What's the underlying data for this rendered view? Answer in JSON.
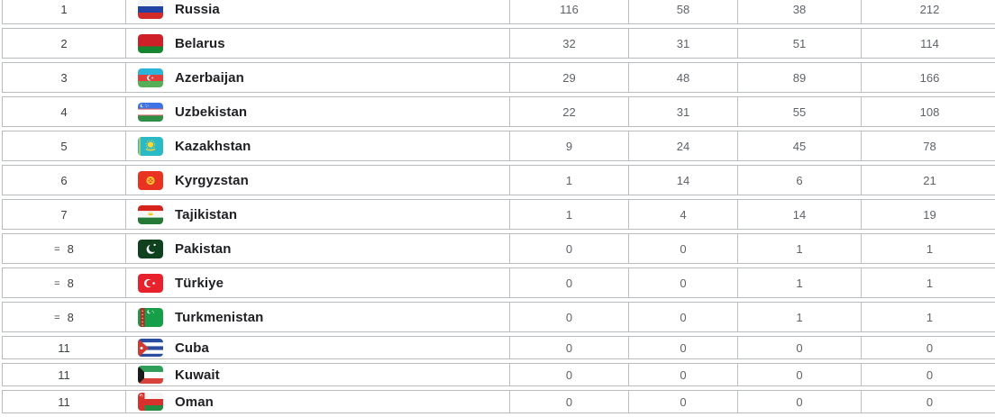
{
  "table": {
    "rows": [
      {
        "rank": "1",
        "prefix": "",
        "country": "Russia",
        "flag": "russia",
        "gold": "116",
        "silver": "58",
        "bronze": "38",
        "total": "212"
      },
      {
        "rank": "2",
        "prefix": "",
        "country": "Belarus",
        "flag": "belarus",
        "gold": "32",
        "silver": "31",
        "bronze": "51",
        "total": "114"
      },
      {
        "rank": "3",
        "prefix": "",
        "country": "Azerbaijan",
        "flag": "azerbaijan",
        "gold": "29",
        "silver": "48",
        "bronze": "89",
        "total": "166"
      },
      {
        "rank": "4",
        "prefix": "",
        "country": "Uzbekistan",
        "flag": "uzbekistan",
        "gold": "22",
        "silver": "31",
        "bronze": "55",
        "total": "108"
      },
      {
        "rank": "5",
        "prefix": "",
        "country": "Kazakhstan",
        "flag": "kazakhstan",
        "gold": "9",
        "silver": "24",
        "bronze": "45",
        "total": "78"
      },
      {
        "rank": "6",
        "prefix": "",
        "country": "Kyrgyzstan",
        "flag": "kyrgyzstan",
        "gold": "1",
        "silver": "14",
        "bronze": "6",
        "total": "21"
      },
      {
        "rank": "7",
        "prefix": "",
        "country": "Tajikistan",
        "flag": "tajikistan",
        "gold": "1",
        "silver": "4",
        "bronze": "14",
        "total": "19"
      },
      {
        "rank": "8",
        "prefix": "=",
        "country": "Pakistan",
        "flag": "pakistan",
        "gold": "0",
        "silver": "0",
        "bronze": "1",
        "total": "1"
      },
      {
        "rank": "8",
        "prefix": "=",
        "country": "Türkiye",
        "flag": "turkiye",
        "gold": "0",
        "silver": "0",
        "bronze": "1",
        "total": "1"
      },
      {
        "rank": "8",
        "prefix": "=",
        "country": "Turkmenistan",
        "flag": "turkmenistan",
        "gold": "0",
        "silver": "0",
        "bronze": "1",
        "total": "1"
      },
      {
        "rank": "11",
        "prefix": "",
        "country": "Cuba",
        "flag": "cuba",
        "gold": "0",
        "silver": "0",
        "bronze": "0",
        "total": "0"
      },
      {
        "rank": "11",
        "prefix": "",
        "country": "Kuwait",
        "flag": "kuwait",
        "gold": "0",
        "silver": "0",
        "bronze": "0",
        "total": "0"
      },
      {
        "rank": "11",
        "prefix": "",
        "country": "Oman",
        "flag": "oman",
        "gold": "0",
        "silver": "0",
        "bronze": "0",
        "total": "0"
      }
    ]
  },
  "colors": {
    "row_border": "#b9bcbf",
    "country_text": "#202124",
    "number_text": "#5f6368",
    "rank_text": "#3c4043",
    "background": "#ffffff"
  }
}
